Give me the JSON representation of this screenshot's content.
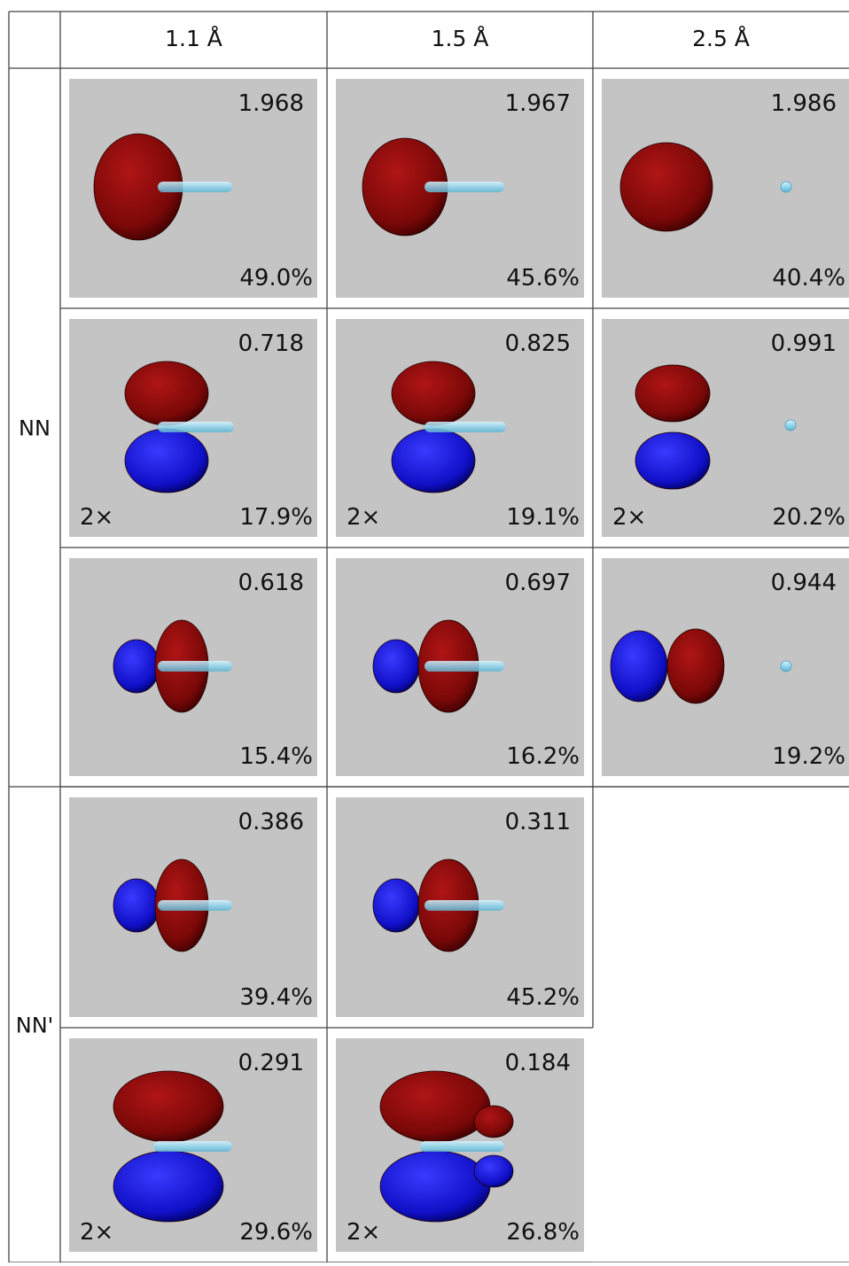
{
  "header": {
    "columns": [
      "1.1 Å",
      "1.5 Å",
      "2.5 Å"
    ]
  },
  "groups": [
    {
      "label": "NN",
      "rows": [
        [
          {
            "value": "1.968",
            "weight": "49.0%"
          },
          {
            "value": "1.967",
            "weight": "45.6%"
          },
          {
            "value": "1.986",
            "weight": "40.4%"
          }
        ],
        [
          {
            "value": "0.718",
            "weight": "17.9%",
            "degeneracy": "2×"
          },
          {
            "value": "0.825",
            "weight": "19.1%",
            "degeneracy": "2×"
          },
          {
            "value": "0.991",
            "weight": "20.2%",
            "degeneracy": "2×"
          }
        ],
        [
          {
            "value": "0.618",
            "weight": "15.4%"
          },
          {
            "value": "0.697",
            "weight": "16.2%"
          },
          {
            "value": "0.944",
            "weight": "19.2%"
          }
        ]
      ]
    },
    {
      "label": "NN'",
      "rows": [
        [
          {
            "value": "0.386",
            "weight": "39.4%"
          },
          {
            "value": "0.311",
            "weight": "45.2%"
          }
        ],
        [
          {
            "value": "0.291",
            "weight": "29.6%",
            "degeneracy": "2×"
          },
          {
            "value": "0.184",
            "weight": "26.8%",
            "degeneracy": "2×"
          }
        ]
      ]
    }
  ]
}
